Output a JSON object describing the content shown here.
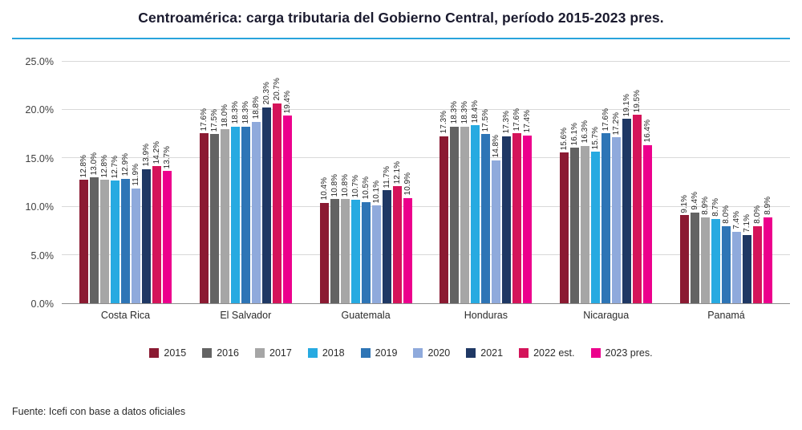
{
  "page": {
    "title": "Centroamérica: carga tributaria del Gobierno Central, período 2015-2023 pres.",
    "source": "Fuente: Icefi con base a datos oficiales",
    "accent_color": "#29a3dc"
  },
  "chart_data": {
    "type": "bar",
    "title": "Centroamérica: carga tributaria del Gobierno Central, período 2015-2023 pres.",
    "xlabel": "",
    "ylabel": "",
    "ylim": [
      0,
      25
    ],
    "yticks": [
      0,
      5,
      10,
      15,
      20,
      25
    ],
    "ytick_labels": [
      "0.0%",
      "5.0%",
      "10.0%",
      "15.0%",
      "20.0%",
      "25.0%"
    ],
    "grid": true,
    "legend_position": "bottom",
    "value_label_suffix": "%",
    "categories": [
      "Costa Rica",
      "El Salvador",
      "Guatemala",
      "Honduras",
      "Nicaragua",
      "Panamá"
    ],
    "series": [
      {
        "name": "2015",
        "color": "#8b1a32",
        "values": [
          12.8,
          17.6,
          10.4,
          17.3,
          15.6,
          9.1
        ]
      },
      {
        "name": "2016",
        "color": "#636363",
        "values": [
          13.0,
          17.5,
          10.8,
          18.3,
          16.1,
          9.4
        ]
      },
      {
        "name": "2017",
        "color": "#a6a6a6",
        "values": [
          12.8,
          18.0,
          10.8,
          18.3,
          16.3,
          8.9
        ]
      },
      {
        "name": "2018",
        "color": "#27aae1",
        "values": [
          12.7,
          18.3,
          10.7,
          18.4,
          15.7,
          8.7
        ]
      },
      {
        "name": "2019",
        "color": "#2e75b6",
        "values": [
          12.9,
          18.3,
          10.5,
          17.5,
          17.6,
          8.0
        ]
      },
      {
        "name": "2020",
        "color": "#8faadc",
        "values": [
          11.9,
          18.8,
          10.1,
          14.8,
          17.2,
          7.4
        ]
      },
      {
        "name": "2021",
        "color": "#1f3864",
        "values": [
          13.9,
          20.3,
          11.7,
          17.3,
          19.1,
          7.1
        ]
      },
      {
        "name": "2022 est.",
        "color": "#d4145a",
        "values": [
          14.2,
          20.7,
          12.1,
          17.6,
          19.5,
          8.0
        ]
      },
      {
        "name": "2023 pres.",
        "color": "#ec008c",
        "values": [
          13.7,
          19.4,
          10.9,
          17.4,
          16.4,
          8.9
        ]
      }
    ]
  }
}
